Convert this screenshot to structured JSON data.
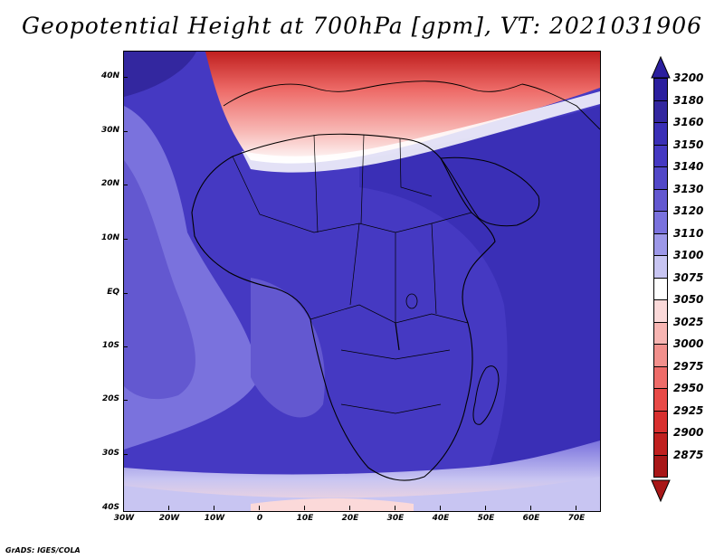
{
  "title": "Geopotential Height at 700hPa [gpm], VT: 2021031906",
  "credit": "GrADS: IGES/COLA",
  "map": {
    "lat_labels": [
      "40N",
      "30N",
      "20N",
      "10N",
      "EQ",
      "10S",
      "20S",
      "30S",
      "40S"
    ],
    "lon_labels": [
      "30W",
      "20W",
      "10W",
      "0",
      "10E",
      "20E",
      "30E",
      "40E",
      "50E",
      "60E",
      "70E"
    ],
    "lon_range": [
      -30,
      75
    ],
    "lat_range": [
      -40,
      45
    ],
    "background_color": "#4b3fc9"
  },
  "colorbar": {
    "levels": [
      "3200",
      "3180",
      "3160",
      "3150",
      "3140",
      "3130",
      "3120",
      "3110",
      "3100",
      "3075",
      "3050",
      "3025",
      "3000",
      "2975",
      "2950",
      "2925",
      "2900",
      "2875"
    ],
    "colors": [
      "#2b1f9e",
      "#33279f",
      "#3a2fb6",
      "#4539c2",
      "#5248c8",
      "#6358d0",
      "#7a72dd",
      "#9d98e8",
      "#c8c5f2",
      "#ffffff",
      "#fbd9d9",
      "#f7b5b2",
      "#f2908c",
      "#ee6c69",
      "#e84a47",
      "#d8302f",
      "#c0201f",
      "#a81718"
    ],
    "top_arrow_color": "#2b1f9e",
    "bottom_arrow_color": "#a81718"
  }
}
